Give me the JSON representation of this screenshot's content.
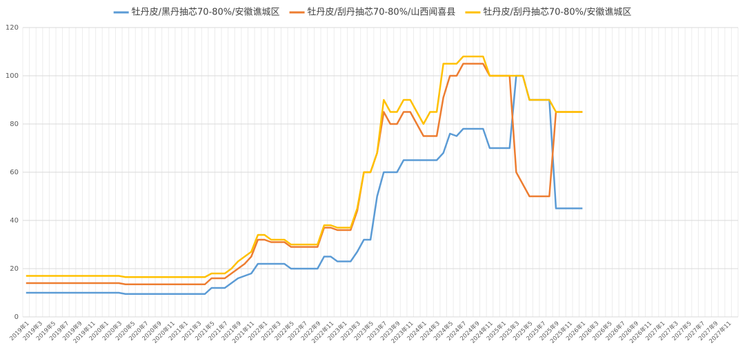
{
  "chart_data": {
    "type": "line",
    "categories": [
      "2019年1",
      null,
      "2019年3",
      null,
      "2019年5",
      null,
      "2019年7",
      null,
      "2019年9",
      null,
      "2019年11",
      null,
      "2020年1",
      null,
      "2020年3",
      null,
      "2020年5",
      null,
      "2020年7",
      null,
      "2020年9",
      null,
      "2020年11",
      null,
      "2021年1",
      null,
      "2021年3",
      null,
      "2021年5",
      null,
      "2021年7",
      null,
      "2021年9",
      null,
      "2021年11",
      null,
      "2022年1",
      null,
      "2022年3",
      null,
      "2022年5",
      null,
      "2022年7",
      null,
      "2022年9",
      null,
      "2022年11",
      null,
      "2023年1",
      null,
      "2023年3",
      null,
      "2023年5",
      null,
      "2023年7",
      null,
      "2023年9",
      null,
      "2023年11",
      null,
      "2024年1",
      null,
      "2024年3",
      null,
      "2024年5",
      null,
      "2024年7",
      null,
      "2024年9",
      null,
      "2024年11",
      null,
      "2025年1",
      null,
      "2025年3",
      null,
      "2025年5",
      null,
      "2025年7",
      null,
      "2025年9",
      null,
      "2025年11",
      null,
      "2026年1",
      null,
      "2026年3",
      null,
      "2026年5",
      null,
      "2026年7",
      null,
      "2026年9",
      null,
      "2026年11",
      null,
      "2027年1",
      null,
      "2027年3",
      null,
      "2027年5",
      null,
      "2027年7",
      null,
      "2027年9",
      null,
      "2027年11",
      null
    ],
    "series": [
      {
        "name": "牡丹皮/黑丹抽芯70-80%/安徽谯城区",
        "color": "#5b9bd5",
        "values": [
          10,
          10,
          10,
          10,
          10,
          10,
          10,
          10,
          10,
          10,
          10,
          10,
          10,
          10,
          10,
          9.5,
          9.5,
          9.5,
          9.5,
          9.5,
          9.5,
          9.5,
          9.5,
          9.5,
          9.5,
          9.5,
          9.5,
          9.5,
          12,
          12,
          12,
          14,
          16,
          17,
          18,
          22,
          22,
          22,
          22,
          22,
          20,
          20,
          20,
          20,
          20,
          25,
          25,
          23,
          23,
          23,
          27,
          32,
          32,
          50,
          60,
          60,
          60,
          65,
          65,
          65,
          65,
          65,
          65,
          68,
          76,
          75,
          78,
          78,
          78,
          78,
          70,
          70,
          70,
          70,
          100,
          100,
          90,
          90,
          90,
          90,
          45,
          45,
          45,
          45,
          45,
          null,
          null,
          null,
          null,
          null,
          null,
          null,
          null,
          null,
          null,
          null,
          null,
          null,
          null,
          null,
          null,
          null,
          null,
          null,
          null,
          null,
          null,
          null
        ]
      },
      {
        "name": "牡丹皮/刮丹抽芯70-80%/山西闻喜县",
        "color": "#ed7d31",
        "values": [
          14,
          14,
          14,
          14,
          14,
          14,
          14,
          14,
          14,
          14,
          14,
          14,
          14,
          14,
          14,
          13.5,
          13.5,
          13.5,
          13.5,
          13.5,
          13.5,
          13.5,
          13.5,
          13.5,
          13.5,
          13.5,
          13.5,
          13.5,
          16,
          16,
          16,
          18,
          20,
          22,
          25,
          32,
          32,
          31,
          31,
          31,
          29,
          29,
          29,
          29,
          29,
          37,
          37,
          36,
          36,
          36,
          44,
          60,
          60,
          68,
          85,
          80,
          80,
          85,
          85,
          80,
          75,
          75,
          75,
          91,
          100,
          100,
          105,
          105,
          105,
          105,
          100,
          100,
          100,
          100,
          60,
          55,
          50,
          50,
          50,
          50,
          85,
          85,
          85,
          85,
          85,
          null,
          null,
          null,
          null,
          null,
          null,
          null,
          null,
          null,
          null,
          null,
          null,
          null,
          null,
          null,
          null,
          null,
          null,
          null,
          null,
          null,
          null,
          null
        ]
      },
      {
        "name": "牡丹皮/刮丹抽芯70-80%/安徽谯城区",
        "color": "#ffc000",
        "values": [
          17,
          17,
          17,
          17,
          17,
          17,
          17,
          17,
          17,
          17,
          17,
          17,
          17,
          17,
          17,
          16.5,
          16.5,
          16.5,
          16.5,
          16.5,
          16.5,
          16.5,
          16.5,
          16.5,
          16.5,
          16.5,
          16.5,
          16.5,
          18,
          18,
          18,
          20,
          23,
          25,
          27,
          34,
          34,
          32,
          32,
          32,
          30,
          30,
          30,
          30,
          30,
          38,
          38,
          37,
          37,
          37,
          45,
          60,
          60,
          68,
          90,
          85,
          85,
          90,
          90,
          85,
          80,
          85,
          85,
          105,
          105,
          105,
          108,
          108,
          108,
          108,
          100,
          100,
          100,
          100,
          100,
          100,
          90,
          90,
          90,
          90,
          85,
          85,
          85,
          85,
          85,
          null,
          null,
          null,
          null,
          null,
          null,
          null,
          null,
          null,
          null,
          null,
          null,
          null,
          null,
          null,
          null,
          null,
          null,
          null,
          null,
          null,
          null,
          null
        ]
      }
    ],
    "ylim": [
      0,
      120
    ],
    "yticks": [
      0,
      20,
      40,
      60,
      80,
      100,
      120
    ],
    "grid": true
  }
}
